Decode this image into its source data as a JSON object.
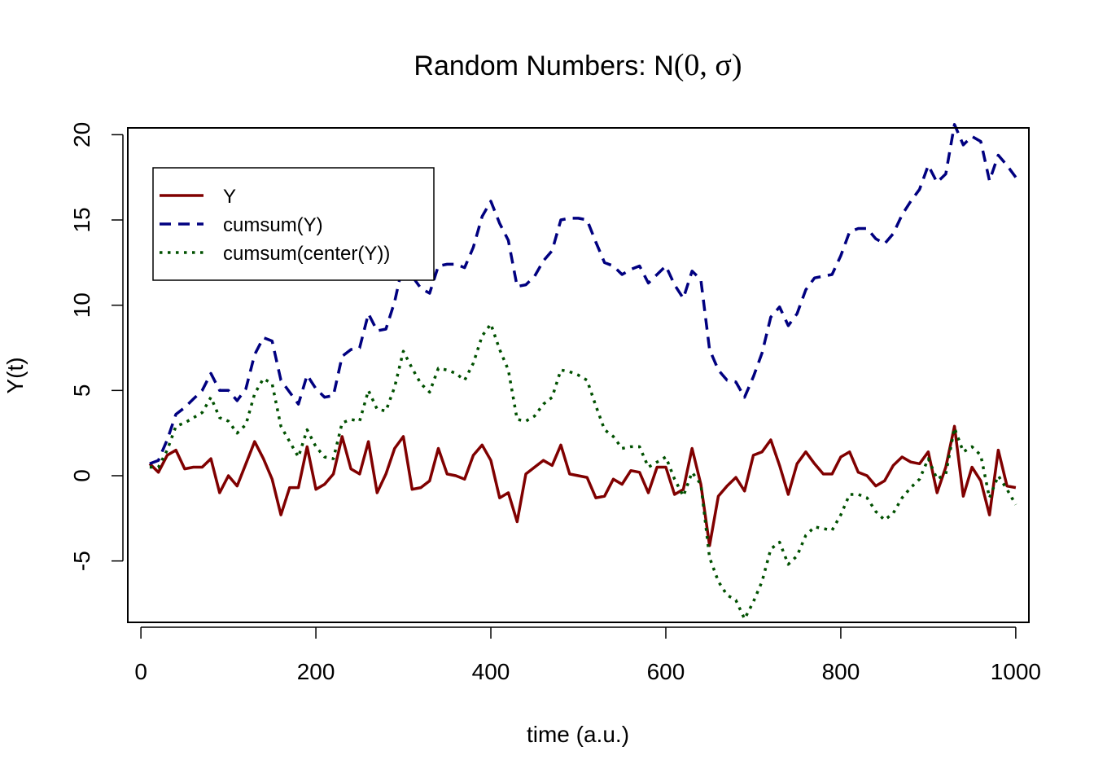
{
  "chart_data": {
    "type": "line",
    "title": "Random Numbers: N(0, σ)",
    "title_parts": {
      "text": "Random Numbers: N",
      "math": "(0, σ)"
    },
    "xlabel": "time (a.u.)",
    "ylabel": "Y(t)",
    "xlim": [
      -15,
      1015
    ],
    "ylim": [
      -8.6,
      20.4
    ],
    "xticks": [
      0,
      200,
      400,
      600,
      800,
      1000
    ],
    "yticks": [
      -5,
      0,
      5,
      10,
      15,
      20
    ],
    "xtick_labels": [
      "0",
      "200",
      "400",
      "600",
      "800",
      "1000"
    ],
    "ytick_labels": [
      "-5",
      "0",
      "5",
      "10",
      "15",
      "20"
    ],
    "grid": false,
    "legend_position": "top-left",
    "x": [
      10,
      20,
      30,
      40,
      50,
      60,
      70,
      80,
      90,
      100,
      110,
      120,
      130,
      140,
      150,
      160,
      170,
      180,
      190,
      200,
      210,
      220,
      230,
      240,
      250,
      260,
      270,
      280,
      290,
      300,
      310,
      320,
      330,
      340,
      350,
      360,
      370,
      380,
      390,
      400,
      410,
      420,
      430,
      440,
      450,
      460,
      470,
      480,
      490,
      500,
      510,
      520,
      530,
      540,
      550,
      560,
      570,
      580,
      590,
      600,
      610,
      620,
      630,
      640,
      650,
      660,
      670,
      680,
      690,
      700,
      710,
      720,
      730,
      740,
      750,
      760,
      770,
      780,
      790,
      800,
      810,
      820,
      830,
      840,
      850,
      860,
      870,
      880,
      890,
      900,
      910,
      920,
      930,
      940,
      950,
      960,
      970,
      980,
      990,
      1000
    ],
    "series": [
      {
        "name": "Y",
        "color": "#800000",
        "dash": "solid",
        "values": [
          0.7,
          0.2,
          1.2,
          1.5,
          0.4,
          0.5,
          0.5,
          1.0,
          -1.0,
          0.0,
          -0.6,
          0.7,
          2.0,
          1.0,
          -0.2,
          -2.3,
          -0.7,
          -0.7,
          1.7,
          -0.8,
          -0.5,
          0.1,
          2.3,
          0.4,
          0.1,
          2.0,
          -1.0,
          0.1,
          1.6,
          2.3,
          -0.8,
          -0.7,
          -0.3,
          1.6,
          0.1,
          0.0,
          -0.2,
          1.2,
          1.8,
          0.9,
          -1.3,
          -1.0,
          -2.7,
          0.1,
          0.5,
          0.9,
          0.6,
          1.8,
          0.1,
          0.0,
          -0.1,
          -1.3,
          -1.2,
          -0.2,
          -0.5,
          0.3,
          0.2,
          -1.0,
          0.5,
          0.5,
          -1.1,
          -0.8,
          1.6,
          -0.5,
          -4.1,
          -1.2,
          -0.6,
          -0.1,
          -0.9,
          1.2,
          1.4,
          2.1,
          0.6,
          -1.1,
          0.7,
          1.4,
          0.7,
          0.1,
          0.1,
          1.1,
          1.4,
          0.2,
          0.0,
          -0.6,
          -0.3,
          0.6,
          1.1,
          0.8,
          0.7,
          1.4,
          -1.0,
          0.5,
          2.9,
          -1.2,
          0.5,
          -0.3,
          -2.3,
          1.5,
          -0.6,
          -0.7
        ]
      },
      {
        "name": "cumsum(Y)",
        "color": "#000080",
        "dash": "dashed",
        "values": [
          0.7,
          0.9,
          2.1,
          3.6,
          4.0,
          4.5,
          5.0,
          6.0,
          5.0,
          5.0,
          4.4,
          5.1,
          7.1,
          8.1,
          7.9,
          5.6,
          4.9,
          4.2,
          5.9,
          5.1,
          4.6,
          4.7,
          7.0,
          7.4,
          7.5,
          9.5,
          8.5,
          8.6,
          10.2,
          12.5,
          11.7,
          11.0,
          10.7,
          12.3,
          12.4,
          12.4,
          12.2,
          13.4,
          15.2,
          16.1,
          14.8,
          13.8,
          11.1,
          11.2,
          11.7,
          12.6,
          13.2,
          15.0,
          15.1,
          15.1,
          15.0,
          13.7,
          12.5,
          12.3,
          11.8,
          12.1,
          12.3,
          11.3,
          11.8,
          12.3,
          11.2,
          10.4,
          12.0,
          11.5,
          7.4,
          6.2,
          5.6,
          5.5,
          4.6,
          5.8,
          7.2,
          9.3,
          9.9,
          8.8,
          9.5,
          10.9,
          11.6,
          11.7,
          11.8,
          12.9,
          14.3,
          14.5,
          14.5,
          13.9,
          13.6,
          14.2,
          15.3,
          16.1,
          16.8,
          18.2,
          17.2,
          17.7,
          20.6,
          19.4,
          19.9,
          19.6,
          17.3,
          18.8,
          18.2,
          17.5
        ]
      },
      {
        "name": "cumsum(center(Y))",
        "color": "#005000",
        "dash": "dotted",
        "values": [
          0.5,
          0.5,
          1.5,
          2.9,
          3.1,
          3.4,
          3.7,
          4.6,
          3.4,
          3.2,
          2.5,
          3.0,
          4.8,
          5.7,
          5.4,
          2.9,
          2.0,
          1.1,
          2.7,
          1.7,
          1.1,
          1.0,
          3.1,
          3.3,
          3.2,
          5.0,
          3.9,
          3.8,
          5.2,
          7.3,
          6.3,
          5.4,
          4.9,
          6.3,
          6.2,
          6.0,
          5.6,
          6.6,
          8.2,
          8.9,
          7.4,
          6.2,
          3.3,
          3.2,
          3.5,
          4.2,
          4.6,
          6.2,
          6.1,
          5.9,
          5.6,
          4.1,
          2.7,
          2.3,
          1.6,
          1.7,
          1.7,
          0.5,
          0.8,
          1.1,
          -0.2,
          -1.2,
          0.2,
          -0.5,
          -4.8,
          -6.2,
          -7.0,
          -7.3,
          -8.4,
          -7.4,
          -6.2,
          -4.3,
          -3.9,
          -5.2,
          -4.7,
          -3.5,
          -3.0,
          -3.1,
          -3.2,
          -2.3,
          -1.1,
          -1.1,
          -1.3,
          -2.1,
          -2.6,
          -2.2,
          -1.3,
          -0.7,
          -0.2,
          1.0,
          -0.2,
          0.1,
          2.8,
          1.4,
          1.7,
          1.2,
          -1.3,
          0.0,
          -0.8,
          -1.7
        ]
      }
    ]
  }
}
